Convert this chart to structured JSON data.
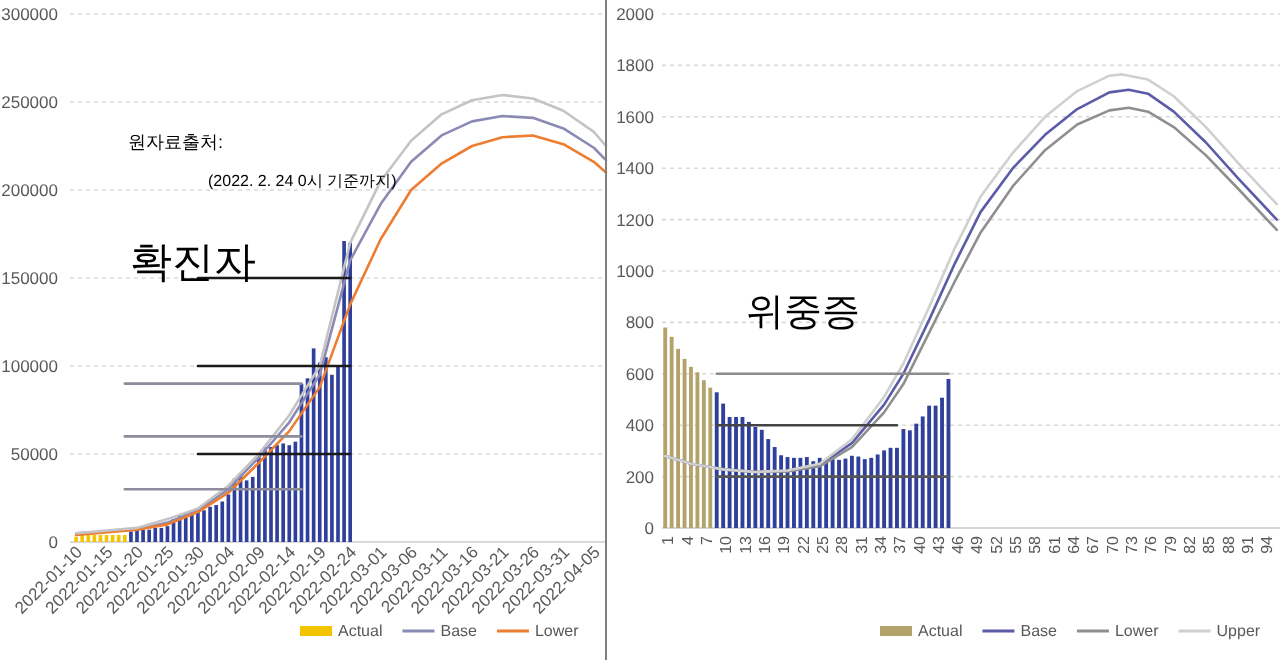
{
  "chart_data": [
    {
      "type": "bar",
      "ylim": [
        0,
        300000
      ],
      "yticks": [
        0,
        50000,
        100000,
        150000,
        200000,
        250000,
        300000
      ],
      "grid": "y",
      "legend": "bottom",
      "xlim": [
        "2022-01-09",
        "2022-04-07"
      ],
      "xticks": [
        "2022-01-10",
        "2022-01-15",
        "2022-01-20",
        "2022-01-25",
        "2022-01-30",
        "2022-02-04",
        "2022-02-09",
        "2022-02-14",
        "2022-02-19",
        "2022-02-24",
        "2022-03-01",
        "2022-03-06",
        "2022-03-11",
        "2022-03-16",
        "2022-03-21",
        "2022-03-26",
        "2022-03-31",
        "2022-04-05"
      ],
      "annotations": [
        "원자료출처:",
        "(2022. 2. 24 0시 기준까지)",
        "확진자"
      ],
      "series": [
        {
          "name": "Actual",
          "color": "#f5c400",
          "x": [
            "2022-01-10",
            "2022-01-11",
            "2022-01-12",
            "2022-01-13",
            "2022-01-14",
            "2022-01-15",
            "2022-01-16",
            "2022-01-17",
            "2022-01-18",
            "2022-01-19",
            "2022-01-20",
            "2022-01-21",
            "2022-01-22",
            "2022-01-23",
            "2022-01-24",
            "2022-01-25",
            "2022-01-26",
            "2022-01-27",
            "2022-01-28",
            "2022-01-29",
            "2022-01-30",
            "2022-01-31",
            "2022-02-01",
            "2022-02-02",
            "2022-02-03",
            "2022-02-04",
            "2022-02-05",
            "2022-02-06",
            "2022-02-07",
            "2022-02-08",
            "2022-02-09",
            "2022-02-10",
            "2022-02-11",
            "2022-02-12",
            "2022-02-13",
            "2022-02-14",
            "2022-02-15",
            "2022-02-16",
            "2022-02-17",
            "2022-02-18",
            "2022-02-19",
            "2022-02-20",
            "2022-02-21",
            "2022-02-22",
            "2022-02-23",
            "2022-02-24"
          ],
          "values": [
            3000,
            4000,
            5000,
            4000,
            4000,
            4000,
            4000,
            4000,
            4000,
            6000,
            7000,
            7000,
            7000,
            8000,
            8000,
            9000,
            13000,
            15000,
            16000,
            18000,
            18000,
            18000,
            20000,
            21000,
            23000,
            27000,
            36000,
            39000,
            35000,
            37000,
            50000,
            54000,
            54000,
            55000,
            56000,
            55000,
            57000,
            90000,
            93000,
            110000,
            102000,
            105000,
            95000,
            100000,
            171000,
            170000
          ],
          "colors": [
            "#f5c400",
            "#f5c400",
            "#f5c400",
            "#f5c400",
            "#f5c400",
            "#f5c400",
            "#f5c400",
            "#f5c400",
            "#f5c400",
            "#2f3f9c",
            "#2f3f9c",
            "#2f3f9c",
            "#2f3f9c",
            "#2f3f9c",
            "#2f3f9c",
            "#2f3f9c",
            "#2f3f9c",
            "#2f3f9c",
            "#2f3f9c",
            "#2f3f9c",
            "#2f3f9c",
            "#2f3f9c",
            "#2f3f9c",
            "#2f3f9c",
            "#2f3f9c",
            "#2f3f9c",
            "#2f3f9c",
            "#2f3f9c",
            "#2f3f9c",
            "#2f3f9c",
            "#2f3f9c",
            "#2f3f9c",
            "#2f3f9c",
            "#2f3f9c",
            "#2f3f9c",
            "#2f3f9c",
            "#2f3f9c",
            "#2f3f9c",
            "#2f3f9c",
            "#2f3f9c",
            "#2f3f9c",
            "#2f3f9c",
            "#2f3f9c",
            "#2f3f9c",
            "#2f3f9c",
            "#2f3f9c"
          ]
        },
        {
          "name": "Base",
          "type": "line",
          "color": "#8a8ab5",
          "x": [
            "2022-01-10",
            "2022-01-20",
            "2022-01-25",
            "2022-01-30",
            "2022-02-04",
            "2022-02-09",
            "2022-02-14",
            "2022-02-19",
            "2022-02-24",
            "2022-03-01",
            "2022-03-06",
            "2022-03-11",
            "2022-03-16",
            "2022-03-21",
            "2022-03-26",
            "2022-03-31",
            "2022-04-05",
            "2022-04-07"
          ],
          "values": [
            5000,
            7000,
            11000,
            18000,
            30000,
            48000,
            68000,
            95000,
            160000,
            192000,
            216000,
            231000,
            239000,
            242000,
            241000,
            235000,
            224000,
            217000
          ]
        },
        {
          "name": "Lower",
          "type": "line",
          "color": "#ed7d31",
          "x": [
            "2022-01-10",
            "2022-01-20",
            "2022-01-25",
            "2022-01-30",
            "2022-02-04",
            "2022-02-09",
            "2022-02-14",
            "2022-02-19",
            "2022-02-24",
            "2022-03-01",
            "2022-03-06",
            "2022-03-11",
            "2022-03-16",
            "2022-03-21",
            "2022-03-26",
            "2022-03-31",
            "2022-04-05",
            "2022-04-07"
          ],
          "values": [
            4000,
            7000,
            10000,
            17000,
            28000,
            45000,
            63000,
            88000,
            135000,
            172000,
            200000,
            215000,
            225000,
            230000,
            231000,
            226000,
            216000,
            210000
          ]
        },
        {
          "type": "line",
          "color": "#c4c4c4",
          "x": [
            "2022-01-10",
            "2022-01-20",
            "2022-01-25",
            "2022-01-30",
            "2022-02-04",
            "2022-02-09",
            "2022-02-14",
            "2022-02-19",
            "2022-02-24",
            "2022-03-01",
            "2022-03-06",
            "2022-03-11",
            "2022-03-16",
            "2022-03-21",
            "2022-03-26",
            "2022-03-31",
            "2022-04-05",
            "2022-04-07"
          ],
          "values": [
            5000,
            8000,
            13000,
            19000,
            32000,
            50000,
            72000,
            100000,
            170000,
            205000,
            228000,
            243000,
            251000,
            254000,
            252000,
            245000,
            233000,
            225000
          ]
        },
        {
          "type": "line",
          "color": "#1a1a1a",
          "x": [
            "2022-01-30",
            "2022-02-24"
          ],
          "values": [
            150000,
            150000
          ]
        },
        {
          "type": "line",
          "color": "#1a1a1a",
          "x": [
            "2022-01-30",
            "2022-02-24"
          ],
          "values": [
            100000,
            100000
          ]
        },
        {
          "type": "line",
          "color": "#1a1a1a",
          "x": [
            "2022-01-30",
            "2022-02-24"
          ],
          "values": [
            50000,
            50000
          ]
        },
        {
          "type": "line",
          "color": "#8c8c9c",
          "x": [
            "2022-01-18",
            "2022-02-16"
          ],
          "values": [
            90000,
            90000
          ]
        },
        {
          "type": "line",
          "color": "#8c8c9c",
          "x": [
            "2022-01-18",
            "2022-02-16"
          ],
          "values": [
            60000,
            60000
          ]
        },
        {
          "type": "line",
          "color": "#8c8c9c",
          "x": [
            "2022-01-18",
            "2022-02-16"
          ],
          "values": [
            30000,
            30000
          ]
        }
      ]
    },
    {
      "type": "bar",
      "ylim": [
        0,
        2000
      ],
      "yticks": [
        0,
        200,
        400,
        600,
        800,
        1000,
        1200,
        1400,
        1600,
        1800,
        2000
      ],
      "grid": "y",
      "legend": "bottom",
      "xlim": [
        0.5,
        96.5
      ],
      "xticks": [
        1,
        4,
        7,
        10,
        13,
        16,
        19,
        22,
        25,
        28,
        31,
        34,
        37,
        40,
        43,
        46,
        49,
        52,
        55,
        58,
        61,
        64,
        67,
        70,
        73,
        76,
        79,
        82,
        85,
        88,
        91,
        94
      ],
      "annotations": [
        "위중증"
      ],
      "series": [
        {
          "name": "Actual",
          "color": "#b3a26a",
          "x": [
            1,
            2,
            3,
            4,
            5,
            6,
            7,
            8,
            9,
            10,
            11,
            12,
            13,
            14,
            15,
            16,
            17,
            18,
            19,
            20,
            21,
            22,
            23,
            24,
            25,
            26,
            27,
            28,
            29,
            30,
            31,
            32,
            33,
            34,
            35,
            36,
            37,
            38,
            39,
            40,
            41,
            42,
            43,
            44,
            45
          ],
          "values": [
            780,
            744,
            697,
            658,
            627,
            606,
            575,
            546,
            528,
            484,
            432,
            432,
            432,
            413,
            393,
            382,
            346,
            315,
            283,
            276,
            273,
            273,
            276,
            260,
            273,
            268,
            268,
            265,
            270,
            281,
            278,
            268,
            273,
            286,
            302,
            312,
            312,
            385,
            380,
            406,
            434,
            476,
            476,
            507,
            580
          ],
          "colors": [
            "#b3a26a",
            "#b3a26a",
            "#b3a26a",
            "#b3a26a",
            "#b3a26a",
            "#b3a26a",
            "#b3a26a",
            "#b3a26a",
            "#2f3f9c",
            "#2f3f9c",
            "#2f3f9c",
            "#2f3f9c",
            "#2f3f9c",
            "#2f3f9c",
            "#2f3f9c",
            "#2f3f9c",
            "#2f3f9c",
            "#2f3f9c",
            "#2f3f9c",
            "#2f3f9c",
            "#2f3f9c",
            "#2f3f9c",
            "#2f3f9c",
            "#2f3f9c",
            "#2f3f9c",
            "#2f3f9c",
            "#2f3f9c",
            "#2f3f9c",
            "#2f3f9c",
            "#2f3f9c",
            "#2f3f9c",
            "#2f3f9c",
            "#2f3f9c",
            "#2f3f9c",
            "#2f3f9c",
            "#2f3f9c",
            "#2f3f9c",
            "#2f3f9c",
            "#2f3f9c",
            "#2f3f9c",
            "#2f3f9c",
            "#2f3f9c",
            "#2f3f9c",
            "#2f3f9c",
            "#2f3f9c"
          ]
        },
        {
          "name": "Base",
          "type": "line",
          "color": "#5b5ba8",
          "x": [
            1,
            5,
            10,
            15,
            20,
            25,
            30,
            35,
            38,
            42,
            46,
            50,
            55,
            60,
            65,
            70,
            73,
            76,
            80,
            85,
            90,
            96
          ],
          "values": [
            280,
            250,
            228,
            218,
            222,
            245,
            330,
            480,
            600,
            810,
            1030,
            1230,
            1400,
            1530,
            1630,
            1695,
            1705,
            1690,
            1620,
            1500,
            1360,
            1200
          ]
        },
        {
          "name": "Lower",
          "type": "line",
          "color": "#8f8f8f",
          "x": [
            1,
            5,
            10,
            15,
            20,
            25,
            30,
            35,
            38,
            42,
            46,
            50,
            55,
            60,
            65,
            70,
            73,
            76,
            80,
            85,
            90,
            96
          ],
          "values": [
            280,
            250,
            228,
            218,
            220,
            240,
            315,
            450,
            560,
            760,
            960,
            1150,
            1330,
            1470,
            1570,
            1625,
            1635,
            1620,
            1560,
            1450,
            1320,
            1160
          ]
        },
        {
          "name": "Upper",
          "type": "line",
          "color": "#d0d0d0",
          "x": [
            1,
            5,
            10,
            15,
            20,
            25,
            30,
            35,
            38,
            42,
            46,
            50,
            55,
            60,
            65,
            70,
            72,
            76,
            80,
            85,
            90,
            96
          ],
          "values": [
            280,
            250,
            228,
            218,
            224,
            250,
            345,
            510,
            640,
            860,
            1090,
            1290,
            1460,
            1600,
            1700,
            1760,
            1765,
            1745,
            1680,
            1560,
            1420,
            1260
          ]
        },
        {
          "type": "line",
          "color": "#8c8c8c",
          "x": [
            9,
            45
          ],
          "values": [
            600,
            600
          ]
        },
        {
          "type": "line",
          "color": "#444444",
          "x": [
            9,
            37
          ],
          "values": [
            400,
            400
          ]
        },
        {
          "type": "line",
          "color": "#555555",
          "x": [
            9,
            45
          ],
          "values": [
            200,
            200
          ]
        }
      ]
    }
  ]
}
